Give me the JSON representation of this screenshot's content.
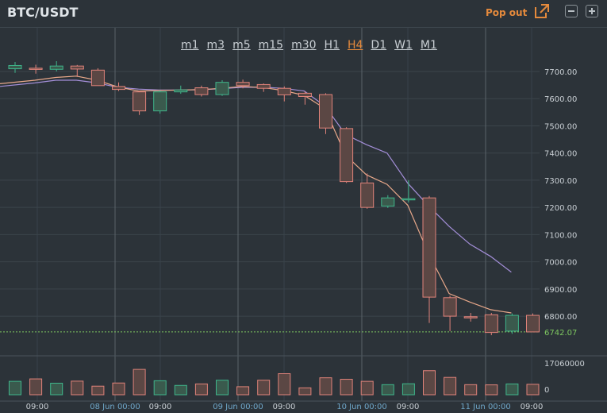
{
  "header": {
    "pair": "BTC/USDT",
    "popout_label": "Pop out"
  },
  "timeframes": [
    {
      "label": "m1",
      "active": false
    },
    {
      "label": "m3",
      "active": false
    },
    {
      "label": "m5",
      "active": false
    },
    {
      "label": "m15",
      "active": false
    },
    {
      "label": "m30",
      "active": false
    },
    {
      "label": "H1",
      "active": false
    },
    {
      "label": "H4",
      "active": true
    },
    {
      "label": "D1",
      "active": false
    },
    {
      "label": "W1",
      "active": false
    },
    {
      "label": "M1",
      "active": false
    }
  ],
  "colors": {
    "up": "#3fb68b",
    "down": "#e0837a",
    "ma_fast": "#e8a88a",
    "ma_slow": "#a48fd9",
    "accent": "#e58a3c",
    "last_price": "#7ec860"
  },
  "chart_data": {
    "type": "candlestick",
    "price_ticks": [
      "7700.00",
      "7600.00",
      "7500.00",
      "7400.00",
      "7300.00",
      "7200.00",
      "7100.00",
      "7000.00",
      "6900.00",
      "6800.00"
    ],
    "price_tick_values": [
      7700,
      7600,
      7500,
      7400,
      7300,
      7200,
      7100,
      7000,
      6900,
      6800
    ],
    "volume_ticks": [
      "17060000",
      "0"
    ],
    "x_labels": [
      "09:00",
      "08 Jun 00:00",
      "09:00",
      "09 Jun 00:00",
      "09:00",
      "10 Jun 00:00",
      "09:00",
      "11 Jun 00:00",
      "09:00"
    ],
    "last_price": "6742.07",
    "candles": [
      {
        "o": 7710,
        "h": 7735,
        "l": 7695,
        "c": 7722
      },
      {
        "o": 7712,
        "h": 7725,
        "l": 7692,
        "c": 7708
      },
      {
        "o": 7708,
        "h": 7738,
        "l": 7700,
        "c": 7720
      },
      {
        "o": 7720,
        "h": 7724,
        "l": 7680,
        "c": 7709
      },
      {
        "o": 7705,
        "h": 7712,
        "l": 7650,
        "c": 7648
      },
      {
        "o": 7645,
        "h": 7660,
        "l": 7628,
        "c": 7634
      },
      {
        "o": 7625,
        "h": 7630,
        "l": 7540,
        "c": 7555
      },
      {
        "o": 7555,
        "h": 7630,
        "l": 7545,
        "c": 7625
      },
      {
        "o": 7625,
        "h": 7648,
        "l": 7618,
        "c": 7632
      },
      {
        "o": 7640,
        "h": 7648,
        "l": 7608,
        "c": 7615
      },
      {
        "o": 7615,
        "h": 7668,
        "l": 7610,
        "c": 7660
      },
      {
        "o": 7660,
        "h": 7670,
        "l": 7638,
        "c": 7648
      },
      {
        "o": 7652,
        "h": 7656,
        "l": 7625,
        "c": 7638
      },
      {
        "o": 7638,
        "h": 7645,
        "l": 7590,
        "c": 7614
      },
      {
        "o": 7620,
        "h": 7626,
        "l": 7578,
        "c": 7608
      },
      {
        "o": 7615,
        "h": 7620,
        "l": 7470,
        "c": 7492
      },
      {
        "o": 7490,
        "h": 7495,
        "l": 7290,
        "c": 7295
      },
      {
        "o": 7290,
        "h": 7325,
        "l": 7195,
        "c": 7200
      },
      {
        "o": 7205,
        "h": 7245,
        "l": 7198,
        "c": 7235
      },
      {
        "o": 7230,
        "h": 7300,
        "l": 7218,
        "c": 7232
      },
      {
        "o": 7235,
        "h": 7242,
        "l": 6775,
        "c": 6870
      },
      {
        "o": 6868,
        "h": 6875,
        "l": 6745,
        "c": 6800
      },
      {
        "o": 6798,
        "h": 6812,
        "l": 6780,
        "c": 6795
      },
      {
        "o": 6805,
        "h": 6812,
        "l": 6730,
        "c": 6740
      },
      {
        "o": 6745,
        "h": 6810,
        "l": 6735,
        "c": 6803
      },
      {
        "o": 6803,
        "h": 6810,
        "l": 6742,
        "c": 6742
      }
    ],
    "volumes": [
      7200000,
      8500000,
      6200000,
      7300000,
      4600000,
      6300000,
      13600000,
      7500000,
      5000000,
      5800000,
      7800000,
      4300000,
      7800000,
      11300000,
      3700000,
      9100000,
      8300000,
      7200000,
      5400000,
      5900000,
      12900000,
      9300000,
      5400000,
      5300000,
      5800000,
      5600000
    ],
    "ma_fast": [
      7655,
      7668,
      7678,
      7683,
      7668,
      7643,
      7628,
      7630,
      7632,
      7633,
      7638,
      7645,
      7641,
      7630,
      7612,
      7564,
      7392,
      7320,
      7285,
      7208,
      7030,
      6883,
      6852,
      6824,
      6812
    ],
    "ma_slow": [
      7645,
      7658,
      7668,
      7668,
      7658,
      7642,
      7635,
      7632,
      7632,
      7633,
      7637,
      7642,
      7642,
      7638,
      7628,
      7573,
      7468,
      7431,
      7400,
      7289,
      7206,
      7130,
      7065,
      7020,
      6962
    ]
  }
}
